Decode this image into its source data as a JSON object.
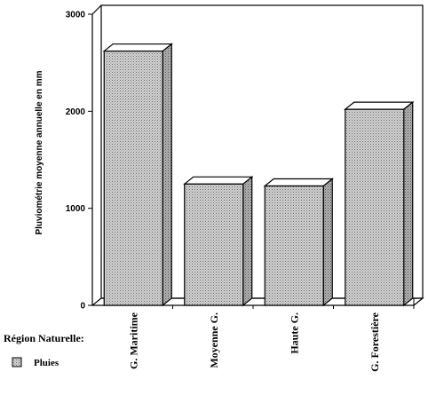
{
  "chart_data": {
    "type": "bar",
    "categories": [
      "G. Maritime",
      "Moyenne G.",
      "Haute G.",
      "G. Forestière"
    ],
    "series": [
      {
        "name": "Pluies",
        "values": [
          2620,
          1250,
          1230,
          2020
        ]
      }
    ],
    "ylabel": "Pluviométrie moyenne annuelle en mm",
    "yticks": [
      "0",
      "1000",
      "2000",
      "3000"
    ],
    "ylim": [
      0,
      3000
    ],
    "grid": false,
    "bar_style": "3d-hatched",
    "legend": {
      "title": "Région Naturelle:",
      "position": "bottom-left"
    },
    "colors": {
      "bar_fill": "#cfcfcf",
      "bar_pattern": "#6e6e6e",
      "outline": "#000000"
    }
  }
}
